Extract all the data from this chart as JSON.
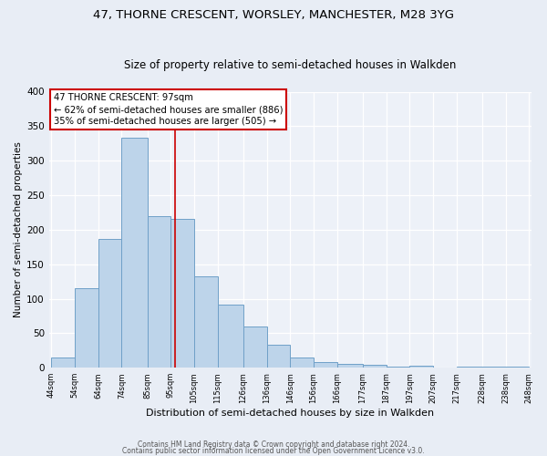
{
  "title": "47, THORNE CRESCENT, WORSLEY, MANCHESTER, M28 3YG",
  "subtitle": "Size of property relative to semi-detached houses in Walkden",
  "xlabel": "Distribution of semi-detached houses by size in Walkden",
  "ylabel": "Number of semi-detached properties",
  "bin_edges": [
    44,
    54,
    64,
    74,
    85,
    95,
    105,
    115,
    126,
    136,
    146,
    156,
    166,
    177,
    187,
    197,
    207,
    217,
    228,
    238,
    248
  ],
  "counts": [
    15,
    115,
    186,
    333,
    220,
    216,
    132,
    92,
    60,
    33,
    15,
    8,
    5,
    4,
    1,
    3,
    0,
    2,
    1,
    1
  ],
  "tick_labels": [
    "44sqm",
    "54sqm",
    "64sqm",
    "74sqm",
    "85sqm",
    "95sqm",
    "105sqm",
    "115sqm",
    "126sqm",
    "136sqm",
    "146sqm",
    "156sqm",
    "166sqm",
    "177sqm",
    "187sqm",
    "197sqm",
    "207sqm",
    "217sqm",
    "228sqm",
    "238sqm",
    "248sqm"
  ],
  "bar_color": "#bdd4ea",
  "bar_edge_color": "#6fa0c8",
  "vline_x": 97,
  "vline_color": "#cc0000",
  "annotation_box_title": "47 THORNE CRESCENT: 97sqm",
  "annotation_line1": "← 62% of semi-detached houses are smaller (886)",
  "annotation_line2": "35% of semi-detached houses are larger (505) →",
  "box_edge_color": "#cc0000",
  "ylim": [
    0,
    400
  ],
  "yticks": [
    0,
    50,
    100,
    150,
    200,
    250,
    300,
    350,
    400
  ],
  "footer1": "Contains HM Land Registry data © Crown copyright and database right 2024.",
  "footer2": "Contains public sector information licensed under the Open Government Licence v3.0.",
  "background_color": "#e8edf5",
  "plot_bg_color": "#edf1f8",
  "grid_color": "#ffffff",
  "title_fontsize": 9.5,
  "subtitle_fontsize": 8.5
}
